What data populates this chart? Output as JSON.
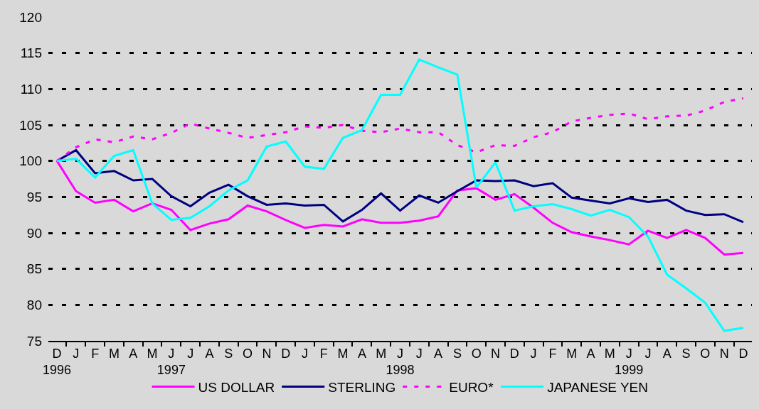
{
  "chart_data": {
    "type": "line",
    "categories": [
      "D\n1996",
      "J",
      "F",
      "M",
      "A",
      "M",
      "J\n1997",
      "J",
      "A",
      "S",
      "O",
      "N",
      "D",
      "J",
      "F",
      "M",
      "A",
      "M",
      "J\n1998",
      "J",
      "A",
      "S",
      "O",
      "N",
      "D",
      "J",
      "F",
      "M",
      "A",
      "M",
      "J\n1999",
      "J",
      "A",
      "S",
      "O",
      "N",
      "D"
    ],
    "series": [
      {
        "name": "US DOLLAR",
        "color": "#ff00ff",
        "line_style": "solid",
        "values": [
          100,
          95.8,
          94.2,
          94.6,
          93.0,
          94.1,
          93.2,
          90.4,
          91.3,
          91.9,
          93.8,
          93.0,
          91.8,
          90.7,
          91.1,
          90.9,
          91.9,
          91.4,
          91.4,
          91.7,
          92.3,
          95.9,
          96.2,
          94.6,
          95.4,
          93.5,
          91.4,
          90.1,
          89.5,
          89.0,
          88.4,
          90.3,
          89.3,
          90.4,
          89.3,
          87.0,
          87.2
        ]
      },
      {
        "name": "STERLING",
        "color": "#000080",
        "line_style": "solid",
        "values": [
          100,
          101.5,
          98.3,
          98.6,
          97.3,
          97.5,
          95.1,
          93.7,
          95.6,
          96.7,
          95.1,
          93.9,
          94.1,
          93.8,
          93.9,
          91.6,
          93.2,
          95.5,
          93.1,
          95.2,
          94.2,
          95.8,
          97.3,
          97.2,
          97.3,
          96.5,
          96.9,
          94.9,
          94.5,
          94.1,
          94.8,
          94.3,
          94.6,
          93.1,
          92.5,
          92.6,
          91.5
        ]
      },
      {
        "name": "EURO*",
        "color": "#ff00ff",
        "line_style": "dashed",
        "values": [
          100,
          101.9,
          103.0,
          102.6,
          103.4,
          103.0,
          103.9,
          105.2,
          104.5,
          103.9,
          103.2,
          103.6,
          104.0,
          104.8,
          104.6,
          105.0,
          104.2,
          104.0,
          104.5,
          104.0,
          104.0,
          102.2,
          101.2,
          102.2,
          102.1,
          103.3,
          104.0,
          105.5,
          106.0,
          106.4,
          106.6,
          105.8,
          106.2,
          106.3,
          107.0,
          108.2,
          108.7
        ]
      },
      {
        "name": "JAPANESE YEN",
        "color": "#00ffff",
        "line_style": "solid",
        "values": [
          100,
          100.3,
          97.7,
          100.7,
          101.5,
          94.1,
          91.8,
          92.1,
          93.7,
          95.9,
          97.3,
          102.0,
          102.7,
          99.2,
          98.9,
          103.2,
          104.3,
          109.2,
          109.2,
          114.1,
          113.0,
          112.0,
          96.3,
          99.8,
          93.1,
          93.7,
          94.0,
          93.3,
          92.4,
          93.2,
          92.2,
          89.5,
          84.2,
          82.3,
          80.3,
          76.4,
          76.8
        ]
      }
    ],
    "ylim": [
      75,
      120
    ],
    "yticks": [
      75,
      80,
      85,
      90,
      95,
      100,
      105,
      110,
      115,
      120
    ],
    "grid": "y",
    "legend": "bottom",
    "marker": "none"
  }
}
